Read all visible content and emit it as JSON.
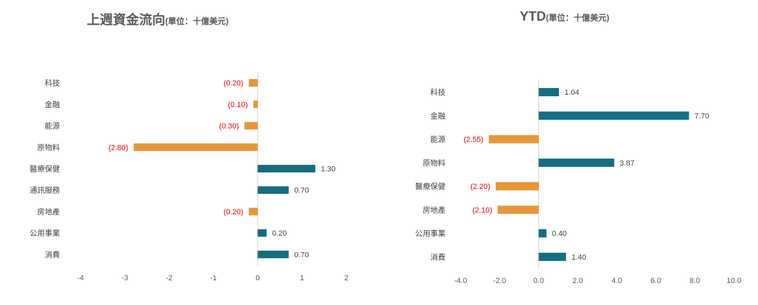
{
  "colors": {
    "positive": "#156d80",
    "negative": "#e8963a",
    "negative_label": "#e00000",
    "label": "#404040",
    "axis": "#d0d0d0"
  },
  "chart_data": [
    {
      "type": "bar",
      "orientation": "horizontal",
      "title": "上週資金流向",
      "unit": "(單位：十億美元)",
      "categories": [
        "科技",
        "金融",
        "能源",
        "原物料",
        "醫療保健",
        "通訊服務",
        "房地產",
        "公用事業",
        "消費"
      ],
      "values": [
        -0.2,
        -0.1,
        -0.3,
        -2.8,
        1.3,
        0.7,
        -0.2,
        0.2,
        0.7
      ],
      "data_labels": [
        "(0.20)",
        "(0.10)",
        "(0.30)",
        "(2.80)",
        "1.30",
        "0.70",
        "(0.20)",
        "0.20",
        "0.70"
      ],
      "xlim": [
        -4,
        2
      ],
      "ticks": [
        -4,
        -3,
        -2,
        -1,
        0,
        1,
        2
      ],
      "tick_labels": [
        "-4",
        "-3",
        "-2",
        "-1",
        "0",
        "1",
        "2"
      ],
      "grid": false
    },
    {
      "type": "bar",
      "orientation": "horizontal",
      "title": "YTD",
      "unit": "(單位：十億美元)",
      "categories": [
        "科技",
        "金融",
        "能源",
        "原物料",
        "醫療保健",
        "房地產",
        "公用事業",
        "消費"
      ],
      "values": [
        1.04,
        7.7,
        -2.55,
        3.87,
        -2.2,
        -2.1,
        0.4,
        1.4
      ],
      "data_labels": [
        "1.04",
        "7.70",
        "(2.55)",
        "3.87",
        "(2.20)",
        "(2.10)",
        "0.40",
        "1.40"
      ],
      "xlim": [
        -4,
        10
      ],
      "ticks": [
        -4,
        -2,
        0,
        2,
        4,
        6,
        8,
        10
      ],
      "tick_labels": [
        "-4.0",
        "-2.0",
        "0.0",
        "2.0",
        "4.0",
        "6.0",
        "8.0",
        "10.0"
      ],
      "grid": false
    }
  ]
}
